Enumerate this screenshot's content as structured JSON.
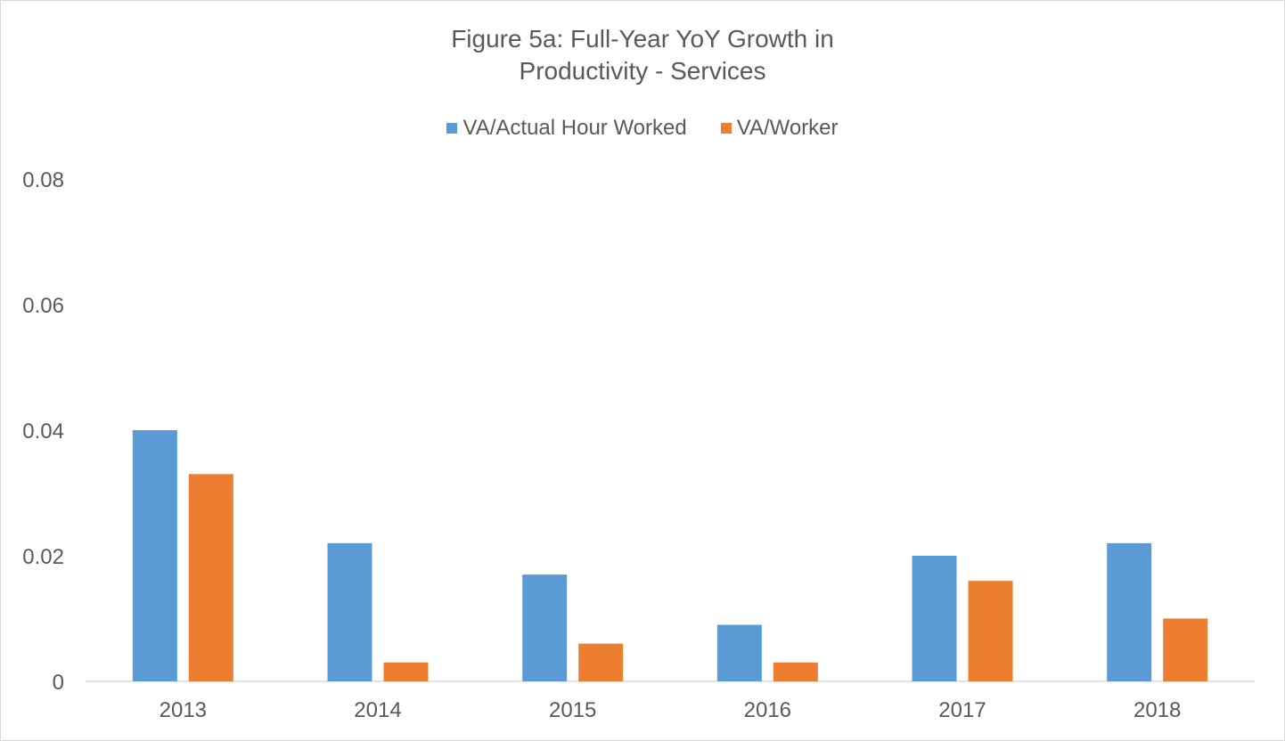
{
  "chart_data": {
    "type": "bar",
    "title_lines": [
      "Figure 5a: Full-Year YoY Growth in",
      "Productivity - Services"
    ],
    "categories": [
      "2013",
      "2014",
      "2015",
      "2016",
      "2017",
      "2018"
    ],
    "series": [
      {
        "name": "VA/Actual Hour Worked",
        "color": "#5b9bd5",
        "values": [
          0.04,
          0.022,
          0.017,
          0.009,
          0.02,
          0.022
        ]
      },
      {
        "name": "VA/Worker",
        "color": "#ed7d31",
        "values": [
          0.033,
          0.003,
          0.006,
          0.003,
          0.016,
          0.01
        ]
      }
    ],
    "ylim": [
      0,
      0.08
    ],
    "yticks": [
      "0",
      "0.02",
      "0.04",
      "0.06",
      "0.08"
    ],
    "grid": false,
    "legend_position": "top"
  }
}
